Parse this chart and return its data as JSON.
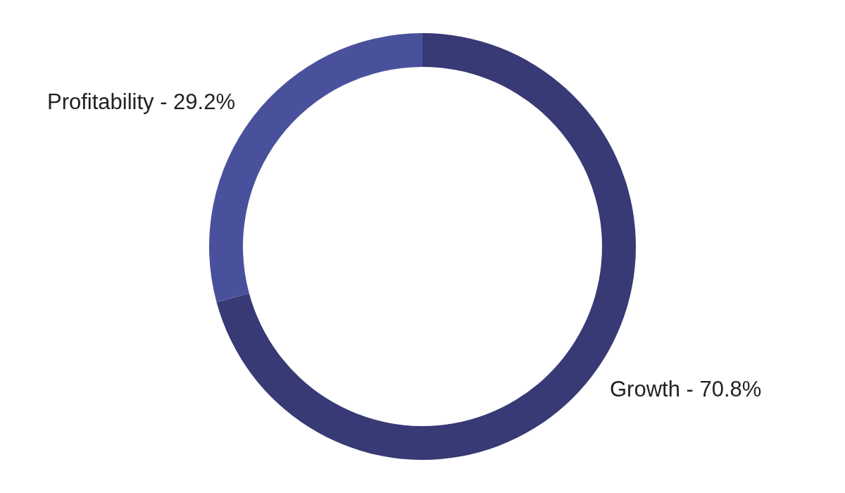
{
  "chart_data": {
    "type": "donut",
    "categories": [
      "Growth -",
      "Profitability -"
    ],
    "values": [
      70.8,
      29.2
    ],
    "colors": [
      "#383a75",
      "#4a519c"
    ],
    "value_labels": [
      "70.8%",
      "29.2%"
    ]
  }
}
